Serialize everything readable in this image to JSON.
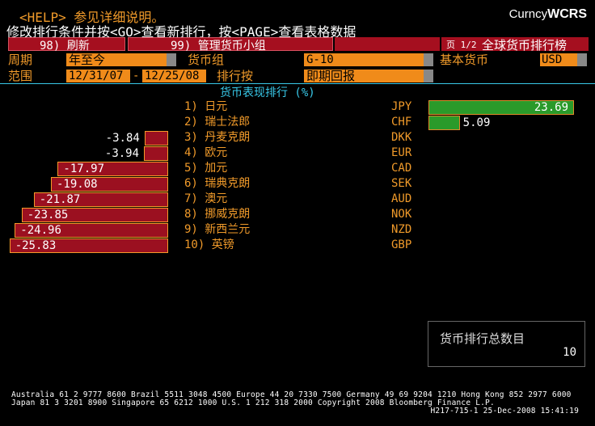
{
  "header": {
    "help_line": "<HELP> 参见详细说明。",
    "instruction": "修改排行条件并按<GO>查看新排行，按<PAGE>查看表格数据",
    "brand_prefix": "Curncy",
    "brand_code": "WCRS"
  },
  "toolbar": {
    "refresh_label": "98) 刷新",
    "manage_label": "99) 管理货币小组",
    "page_info": "页 1/2",
    "title": "全球货币排行榜"
  },
  "filters": {
    "period_label": "周期",
    "period_value": "年至今",
    "currency_group_label": "货币组",
    "currency_group_value": "G-10",
    "base_currency_label": "基本货币",
    "base_currency_value": "USD",
    "range_label": "范围",
    "start_date": "12/31/07",
    "dash": "-",
    "end_date": "12/25/08",
    "rank_by_label": "排行按",
    "rank_by_value": "即期回报"
  },
  "chart_heading": "货币表现排行 (%)",
  "chart_data": {
    "type": "bar",
    "title": "货币表现排行 (%)",
    "categories": [
      "1) 日元",
      "2) 瑞士法郎",
      "3) 丹麦克朗",
      "4) 欧元",
      "5) 加元",
      "6) 瑞典克朗",
      "7) 澳元",
      "8) 挪威克朗",
      "9) 新西兰元",
      "10) 英镑"
    ],
    "codes": [
      "JPY",
      "CHF",
      "DKK",
      "EUR",
      "CAD",
      "SEK",
      "AUD",
      "NOK",
      "NZD",
      "GBP"
    ],
    "values": [
      23.69,
      5.09,
      -3.84,
      -3.94,
      -17.97,
      -19.08,
      -21.87,
      -23.85,
      -24.96,
      -25.83
    ],
    "labels": [
      "23.69",
      "5.09",
      "-3.84",
      "-3.94",
      "-17.97",
      "-19.08",
      "-21.87",
      "-23.85",
      "-24.96",
      "-25.83"
    ]
  },
  "summary": {
    "label": "货币排行总数目",
    "count": "10"
  },
  "footer": {
    "line1": "Australia 61 2 9777 8600 Brazil 5511 3048 4500 Europe 44 20 7330 7500 Germany 49 69 9204 1210 Hong Kong 852 2977 6000",
    "line2": "Japan 81 3 3201 8900        Singapore 65 6212 1000        U.S. 1 212 318 2000          Copyright 2008 Bloomberg Finance L.P.",
    "line3": "H217-715-1 25-Dec-2008 15:41:19"
  },
  "colors": {
    "background": "#000000",
    "red": "#a50f1f",
    "orange": "#f08b1a",
    "green": "#2a9a2a",
    "cyan": "#38c8e8"
  }
}
